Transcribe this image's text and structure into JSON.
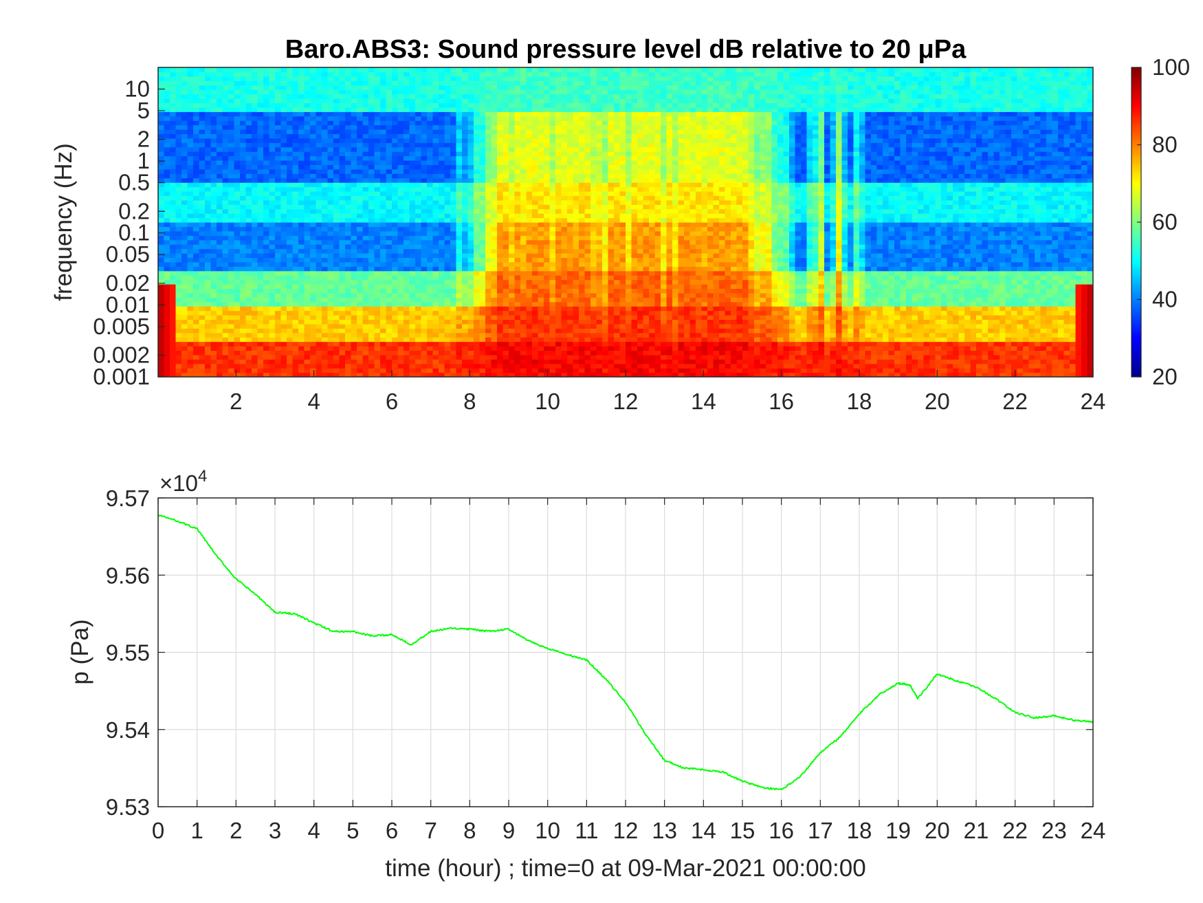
{
  "chart_data": [
    {
      "type": "heatmap",
      "title": "Baro.ABS3: Sound pressure level dB relative to 20 μPa",
      "xlabel": "",
      "ylabel": "frequency (Hz)",
      "xlim": [
        0,
        24
      ],
      "x_ticks": [
        2,
        4,
        6,
        8,
        10,
        12,
        14,
        16,
        18,
        20,
        22,
        24
      ],
      "y_scale": "log",
      "ylim": [
        0.001,
        20
      ],
      "y_ticks": [
        0.001,
        0.002,
        0.005,
        0.01,
        0.02,
        0.05,
        0.1,
        0.2,
        0.5,
        1,
        2,
        5,
        10
      ],
      "y_tick_labels": [
        "0.001",
        "0.002",
        "0.005",
        "0.01",
        "0.02",
        "0.05",
        "0.1",
        "0.2",
        "0.5",
        "1",
        "2",
        "5",
        "10"
      ],
      "colormap": "jet",
      "colorbar": {
        "range": [
          20,
          100
        ],
        "ticks": [
          20,
          40,
          60,
          80,
          100
        ]
      },
      "active_period_hours": [
        8,
        16
      ],
      "bands_db": [
        {
          "freq_range_hz": [
            5,
            20
          ],
          "quiet_db": 52,
          "active_db": 55
        },
        {
          "freq_range_hz": [
            0.5,
            5
          ],
          "quiet_db": 38,
          "active_db": 68
        },
        {
          "freq_range_hz": [
            0.15,
            0.5
          ],
          "quiet_db": 50,
          "active_db": 72
        },
        {
          "freq_range_hz": [
            0.03,
            0.15
          ],
          "quiet_db": 40,
          "active_db": 78
        },
        {
          "freq_range_hz": [
            0.01,
            0.03
          ],
          "quiet_db": 58,
          "active_db": 82
        },
        {
          "freq_range_hz": [
            0.003,
            0.01
          ],
          "quiet_db": 74,
          "active_db": 86
        },
        {
          "freq_range_hz": [
            0.001,
            0.003
          ],
          "quiet_db": 86,
          "active_db": 90
        }
      ],
      "grid": false
    },
    {
      "type": "line",
      "title": "",
      "xlabel": "time (hour) ; time=0 at 09-Mar-2021 00:00:00",
      "ylabel": "p (Pa)",
      "y_exponent_label": "×10",
      "y_exponent": "4",
      "xlim": [
        0,
        24
      ],
      "ylim": [
        95300,
        95700
      ],
      "x_ticks": [
        0,
        1,
        2,
        3,
        4,
        5,
        6,
        7,
        8,
        9,
        10,
        11,
        12,
        13,
        14,
        15,
        16,
        17,
        18,
        19,
        20,
        21,
        22,
        23,
        24
      ],
      "y_ticks": [
        95300,
        95400,
        95500,
        95600,
        95700
      ],
      "y_tick_labels": [
        "9.53",
        "9.54",
        "9.55",
        "9.56",
        "9.57"
      ],
      "grid": true,
      "series": [
        {
          "color": "#00ff00",
          "x": [
            0,
            0.5,
            1,
            1.5,
            2,
            2.5,
            3,
            3.5,
            4,
            4.5,
            5,
            5.5,
            6,
            6.5,
            7,
            7.5,
            8,
            8.5,
            9,
            9.5,
            10,
            10.5,
            11,
            11.5,
            12,
            12.5,
            13,
            13.5,
            14,
            14.5,
            15,
            15.5,
            16,
            16.5,
            17,
            17.5,
            18,
            18.5,
            19,
            19.3,
            19.5,
            20,
            20.5,
            21,
            21.5,
            22,
            22.5,
            23,
            23.5,
            24
          ],
          "values": [
            95678,
            95670,
            95660,
            95625,
            95595,
            95575,
            95552,
            95550,
            95538,
            95527,
            95527,
            95521,
            95523,
            95510,
            95527,
            95531,
            95530,
            95527,
            95530,
            95515,
            95505,
            95497,
            95490,
            95465,
            95435,
            95395,
            95360,
            95350,
            95348,
            95345,
            95333,
            95325,
            95322,
            95340,
            95370,
            95390,
            95420,
            95445,
            95460,
            95458,
            95440,
            95472,
            95463,
            95455,
            95440,
            95422,
            95415,
            95418,
            95412,
            95410
          ]
        }
      ]
    }
  ]
}
